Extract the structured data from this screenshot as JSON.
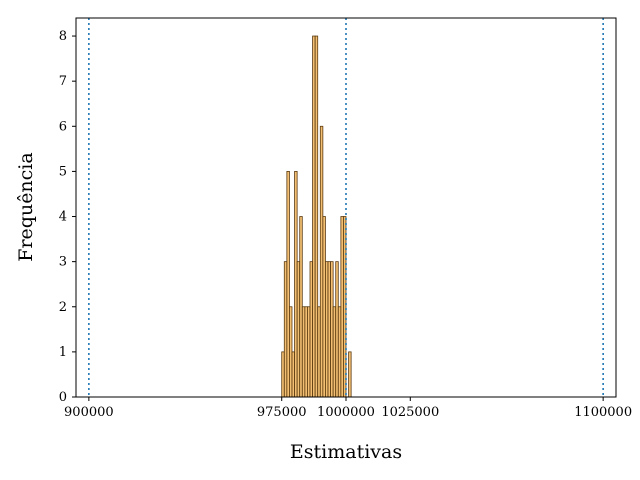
{
  "chart_data": {
    "type": "bar",
    "title": "",
    "xlabel": "Estimativas",
    "ylabel": "Frequência",
    "xlim": [
      895000,
      1105000
    ],
    "ylim": [
      0,
      8.4
    ],
    "x_ticks": [
      900000,
      975000,
      1000000,
      1025000,
      1100000
    ],
    "y_ticks": [
      0,
      1,
      2,
      3,
      4,
      5,
      6,
      7,
      8
    ],
    "bin_width": 1000,
    "bins": [
      {
        "x": 975000,
        "value": 1
      },
      {
        "x": 976000,
        "value": 3
      },
      {
        "x": 977000,
        "value": 5
      },
      {
        "x": 978000,
        "value": 2
      },
      {
        "x": 979000,
        "value": 1
      },
      {
        "x": 980000,
        "value": 5
      },
      {
        "x": 981000,
        "value": 3
      },
      {
        "x": 982000,
        "value": 4
      },
      {
        "x": 983000,
        "value": 2
      },
      {
        "x": 984000,
        "value": 2
      },
      {
        "x": 985000,
        "value": 2
      },
      {
        "x": 986000,
        "value": 3
      },
      {
        "x": 987000,
        "value": 8
      },
      {
        "x": 988000,
        "value": 8
      },
      {
        "x": 989000,
        "value": 2
      },
      {
        "x": 990000,
        "value": 6
      },
      {
        "x": 991000,
        "value": 4
      },
      {
        "x": 992000,
        "value": 3
      },
      {
        "x": 993000,
        "value": 3
      },
      {
        "x": 994000,
        "value": 3
      },
      {
        "x": 995000,
        "value": 2
      },
      {
        "x": 996000,
        "value": 3
      },
      {
        "x": 997000,
        "value": 2
      },
      {
        "x": 998000,
        "value": 4
      },
      {
        "x": 999000,
        "value": 4
      },
      {
        "x": 1000000,
        "value": 0
      },
      {
        "x": 1001000,
        "value": 1
      }
    ],
    "reference_lines": [
      900000,
      1000000,
      1100000
    ],
    "grid": false,
    "colors": {
      "bar_fill": "#f0b45a",
      "bar_edge": "#5a3a10",
      "reference_line": "#1f77b4",
      "axis": "#000000"
    }
  }
}
